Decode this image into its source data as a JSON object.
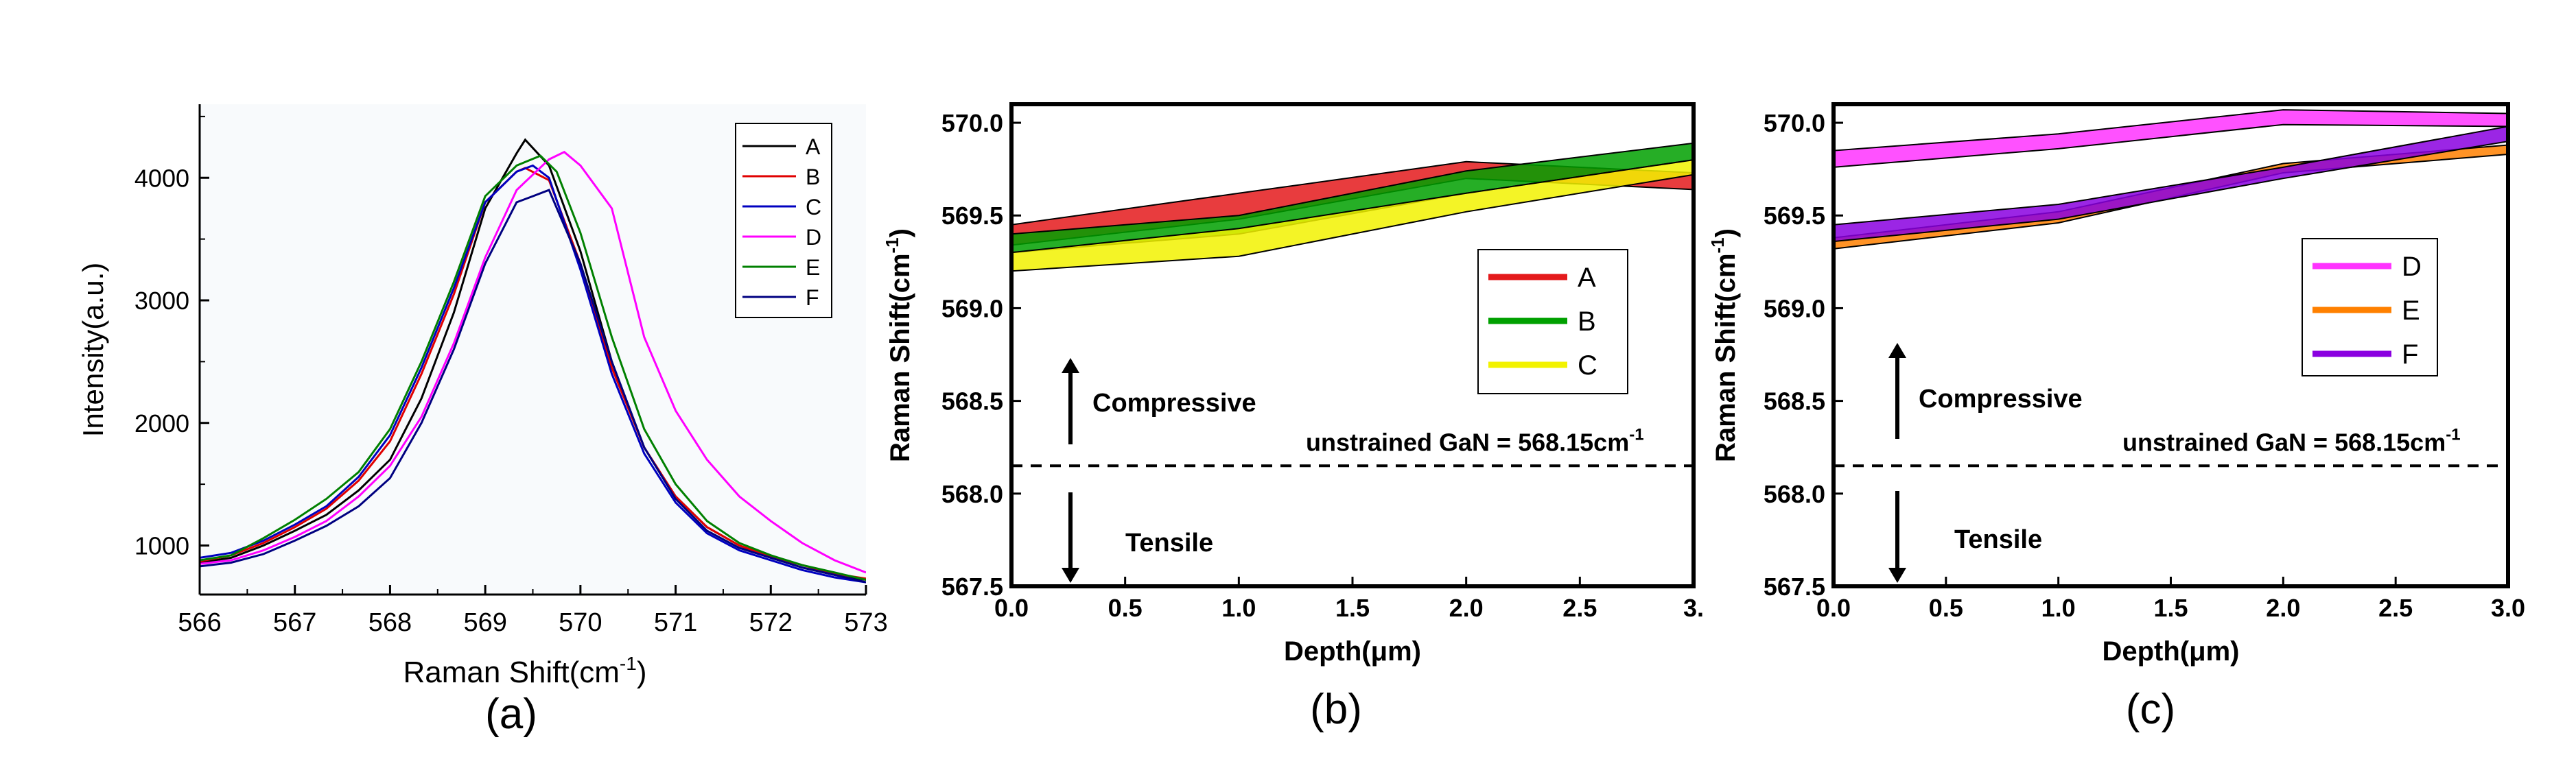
{
  "colors": {
    "A": "#e41a1c",
    "B": "#00a000",
    "C": "#f2f200",
    "D": "#ff33ff",
    "E": "#ff8000",
    "F": "#8a00e0",
    "a_A": "#000000",
    "a_B": "#e00000",
    "a_C": "#0000c0",
    "a_D": "#ff00ff",
    "a_E": "#008000",
    "a_F": "#000080"
  },
  "chart_data": [
    {
      "type": "line",
      "caption": "(a)",
      "xlabel": "Raman Shift(cm",
      "xlabel_sup": "-1",
      "xlabel_close": ")",
      "ylabel": "Intensity(a.u.)",
      "xlim": [
        566,
        573
      ],
      "ylim": [
        600,
        4600
      ],
      "xticks": [
        566,
        567,
        568,
        569,
        570,
        571,
        572,
        573
      ],
      "xtick_labels": [
        "566",
        "567",
        "568",
        "569",
        "570",
        "571",
        "572",
        "573"
      ],
      "yticks": [
        1000,
        2000,
        3000,
        4000
      ],
      "ytick_labels": [
        "1000",
        "2000",
        "3000",
        "4000"
      ],
      "legend": [
        "A",
        "B",
        "C",
        "D",
        "E",
        "F"
      ],
      "series": [
        {
          "name": "A",
          "x": [
            566,
            566.33,
            566.67,
            567,
            567.33,
            567.67,
            568,
            568.33,
            568.67,
            569,
            569.33,
            569.42,
            569.67,
            570,
            570.33,
            570.67,
            571,
            571.33,
            571.67,
            572,
            572.33,
            572.67,
            573
          ],
          "y": [
            860,
            900,
            1000,
            1120,
            1250,
            1450,
            1700,
            2200,
            2900,
            3750,
            4200,
            4310,
            4100,
            3400,
            2500,
            1800,
            1400,
            1150,
            1000,
            900,
            820,
            760,
            720
          ]
        },
        {
          "name": "B",
          "x": [
            566,
            566.33,
            566.67,
            567,
            567.33,
            567.67,
            568,
            568.33,
            568.67,
            569,
            569.33,
            569.42,
            569.67,
            570,
            570.33,
            570.67,
            571,
            571.33,
            571.67,
            572,
            572.33,
            572.67,
            573
          ],
          "y": [
            870,
            920,
            1020,
            1150,
            1300,
            1530,
            1850,
            2400,
            3050,
            3800,
            4050,
            4080,
            3980,
            3300,
            2450,
            1800,
            1400,
            1150,
            1000,
            910,
            840,
            770,
            730
          ]
        },
        {
          "name": "C",
          "x": [
            566,
            566.33,
            566.67,
            567,
            567.33,
            567.67,
            568,
            568.33,
            568.67,
            569,
            569.33,
            569.5,
            569.67,
            570,
            570.33,
            570.67,
            571,
            571.33,
            571.67,
            572,
            572.33,
            572.67,
            573
          ],
          "y": [
            900,
            940,
            1040,
            1170,
            1320,
            1560,
            1900,
            2450,
            3100,
            3800,
            4050,
            4100,
            4000,
            3250,
            2400,
            1750,
            1350,
            1100,
            960,
            880,
            800,
            740,
            700
          ]
        },
        {
          "name": "D",
          "x": [
            566,
            566.33,
            566.67,
            567,
            567.33,
            567.67,
            568,
            568.33,
            568.67,
            569,
            569.33,
            569.67,
            569.83,
            570,
            570.33,
            570.67,
            571,
            571.33,
            571.67,
            572,
            572.33,
            572.67,
            573
          ],
          "y": [
            850,
            880,
            960,
            1070,
            1200,
            1400,
            1650,
            2050,
            2650,
            3350,
            3900,
            4150,
            4210,
            4100,
            3750,
            2700,
            2100,
            1700,
            1400,
            1200,
            1020,
            880,
            780
          ]
        },
        {
          "name": "E",
          "x": [
            566,
            566.33,
            566.67,
            567,
            567.33,
            567.67,
            568,
            568.33,
            568.67,
            569,
            569.33,
            569.58,
            569.75,
            570,
            570.33,
            570.67,
            571,
            571.33,
            571.67,
            572,
            572.33,
            572.67,
            573
          ],
          "y": [
            880,
            920,
            1060,
            1210,
            1380,
            1600,
            1950,
            2500,
            3150,
            3850,
            4100,
            4180,
            4050,
            3550,
            2700,
            1950,
            1500,
            1200,
            1020,
            920,
            840,
            780,
            720
          ]
        },
        {
          "name": "F",
          "x": [
            566,
            566.33,
            566.67,
            567,
            567.33,
            567.67,
            568,
            568.33,
            568.67,
            569,
            569.33,
            569.5,
            569.67,
            570,
            570.33,
            570.67,
            571,
            571.33,
            571.67,
            572,
            572.33,
            572.67,
            573
          ],
          "y": [
            830,
            860,
            930,
            1040,
            1160,
            1320,
            1550,
            2000,
            2600,
            3300,
            3800,
            3850,
            3900,
            3300,
            2500,
            1800,
            1380,
            1120,
            980,
            900,
            820,
            760,
            700
          ]
        }
      ]
    },
    {
      "type": "area",
      "caption": "(b)",
      "xlabel": "Depth(",
      "xlabel_mu": "μ",
      "xlabel_close": "m)",
      "ylabel": "Raman Shift(cm",
      "ylabel_sup": "-1",
      "ylabel_close": ")",
      "xlim": [
        0,
        3
      ],
      "ylim": [
        567.5,
        570.1
      ],
      "xticks": [
        0,
        0.5,
        1,
        1.5,
        2,
        2.5,
        3
      ],
      "xtick_labels": [
        "0.0",
        "0.5",
        "1.0",
        "1.5",
        "2.0",
        "2.5",
        "3."
      ],
      "yticks": [
        567.5,
        568,
        568.5,
        569,
        569.5,
        570
      ],
      "ytick_labels": [
        "567.5",
        "568.0",
        "568.5",
        "569.0",
        "569.5",
        "570.0"
      ],
      "reference_line": 568.15,
      "reference_label": "unstrained GaN = 568.15cm",
      "reference_sup": "-1",
      "compressive_label": "Compressive",
      "tensile_label": "Tensile",
      "legend": [
        "A",
        "B",
        "C"
      ],
      "series": [
        {
          "name": "A",
          "x": [
            0,
            1,
            2,
            3
          ],
          "lower": [
            569.34,
            569.48,
            569.7,
            569.64
          ],
          "upper": [
            569.45,
            569.62,
            569.79,
            569.73
          ]
        },
        {
          "name": "B",
          "x": [
            0,
            1,
            2,
            3
          ],
          "lower": [
            569.3,
            569.4,
            569.62,
            569.8
          ],
          "upper": [
            569.4,
            569.5,
            569.74,
            569.89
          ]
        },
        {
          "name": "C",
          "x": [
            0,
            1,
            2,
            3
          ],
          "lower": [
            569.2,
            569.28,
            569.52,
            569.72
          ],
          "upper": [
            569.3,
            569.43,
            569.62,
            569.8
          ]
        }
      ]
    },
    {
      "type": "area",
      "caption": "(c)",
      "xlabel": "Depth(",
      "xlabel_mu": "μ",
      "xlabel_close": "m)",
      "ylabel": "Raman Shift(cm",
      "ylabel_sup": "-1",
      "ylabel_close": ")",
      "xlim": [
        0,
        3
      ],
      "ylim": [
        567.5,
        570.1
      ],
      "xticks": [
        0,
        0.5,
        1,
        1.5,
        2,
        2.5,
        3
      ],
      "xtick_labels": [
        "0.0",
        "0.5",
        "1.0",
        "1.5",
        "2.0",
        "2.5",
        "3.0"
      ],
      "yticks": [
        567.5,
        568,
        568.5,
        569,
        569.5,
        570
      ],
      "ytick_labels": [
        "567.5",
        "568.0",
        "568.5",
        "569.0",
        "569.5",
        "570.0"
      ],
      "reference_line": 568.15,
      "reference_label": "unstrained GaN = 568.15cm",
      "reference_sup": "-1",
      "compressive_label": "Compressive",
      "tensile_label": "Tensile",
      "legend": [
        "D",
        "E",
        "F"
      ],
      "series": [
        {
          "name": "D",
          "x": [
            0,
            1,
            2,
            3
          ],
          "lower": [
            569.76,
            569.86,
            569.99,
            569.98
          ],
          "upper": [
            569.85,
            569.94,
            570.07,
            570.05
          ]
        },
        {
          "name": "E",
          "x": [
            0,
            1,
            2,
            3
          ],
          "lower": [
            569.32,
            569.46,
            569.73,
            569.83
          ],
          "upper": [
            569.38,
            569.52,
            569.78,
            569.88
          ]
        },
        {
          "name": "F",
          "x": [
            0,
            1,
            2,
            3
          ],
          "lower": [
            569.36,
            569.48,
            569.7,
            569.9
          ],
          "upper": [
            569.45,
            569.56,
            569.76,
            569.98
          ]
        }
      ]
    }
  ]
}
